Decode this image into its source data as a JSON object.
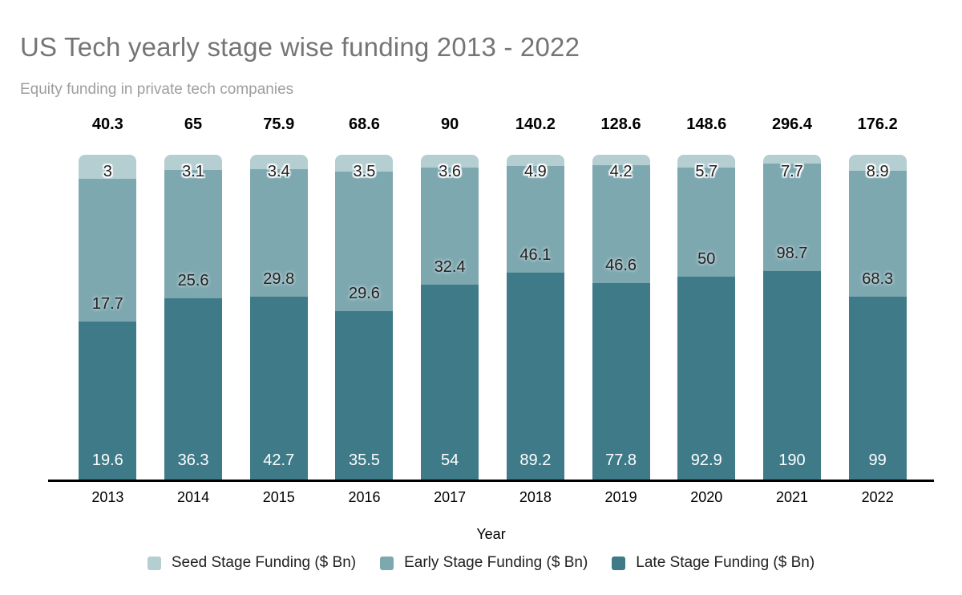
{
  "header": {
    "title": "US Tech yearly stage wise funding 2013 - 2022",
    "subtitle": "Equity funding in private tech companies"
  },
  "chart_data": {
    "type": "bar",
    "variant": "percent-stacked-with-absolute-labels",
    "categories": [
      "2013",
      "2014",
      "2015",
      "2016",
      "2017",
      "2018",
      "2019",
      "2020",
      "2021",
      "2022"
    ],
    "series": [
      {
        "key": "seed",
        "name": "Seed Stage Funding ($ Bn)",
        "color": "#b5ced2",
        "values": [
          3,
          3.1,
          3.4,
          3.5,
          3.6,
          4.9,
          4.2,
          5.7,
          7.7,
          8.9
        ]
      },
      {
        "key": "early",
        "name": "Early Stage Funding ($ Bn)",
        "color": "#7ea8b0",
        "values": [
          17.7,
          25.6,
          29.8,
          29.6,
          32.4,
          46.1,
          46.6,
          50,
          98.7,
          68.3
        ]
      },
      {
        "key": "late",
        "name": "Late Stage Funding ($ Bn)",
        "color": "#3e7a88",
        "values": [
          19.6,
          36.3,
          42.7,
          35.5,
          54,
          89.2,
          77.8,
          92.9,
          190,
          99
        ]
      }
    ],
    "totals": [
      40.3,
      65,
      75.9,
      68.6,
      90,
      140.2,
      128.6,
      148.6,
      296.4,
      176.2
    ],
    "xlabel": "Year",
    "legend_position": "bottom",
    "grid": false,
    "axis_color": "#000000",
    "title_color": "#757575",
    "subtitle_color": "#9e9e9e"
  }
}
